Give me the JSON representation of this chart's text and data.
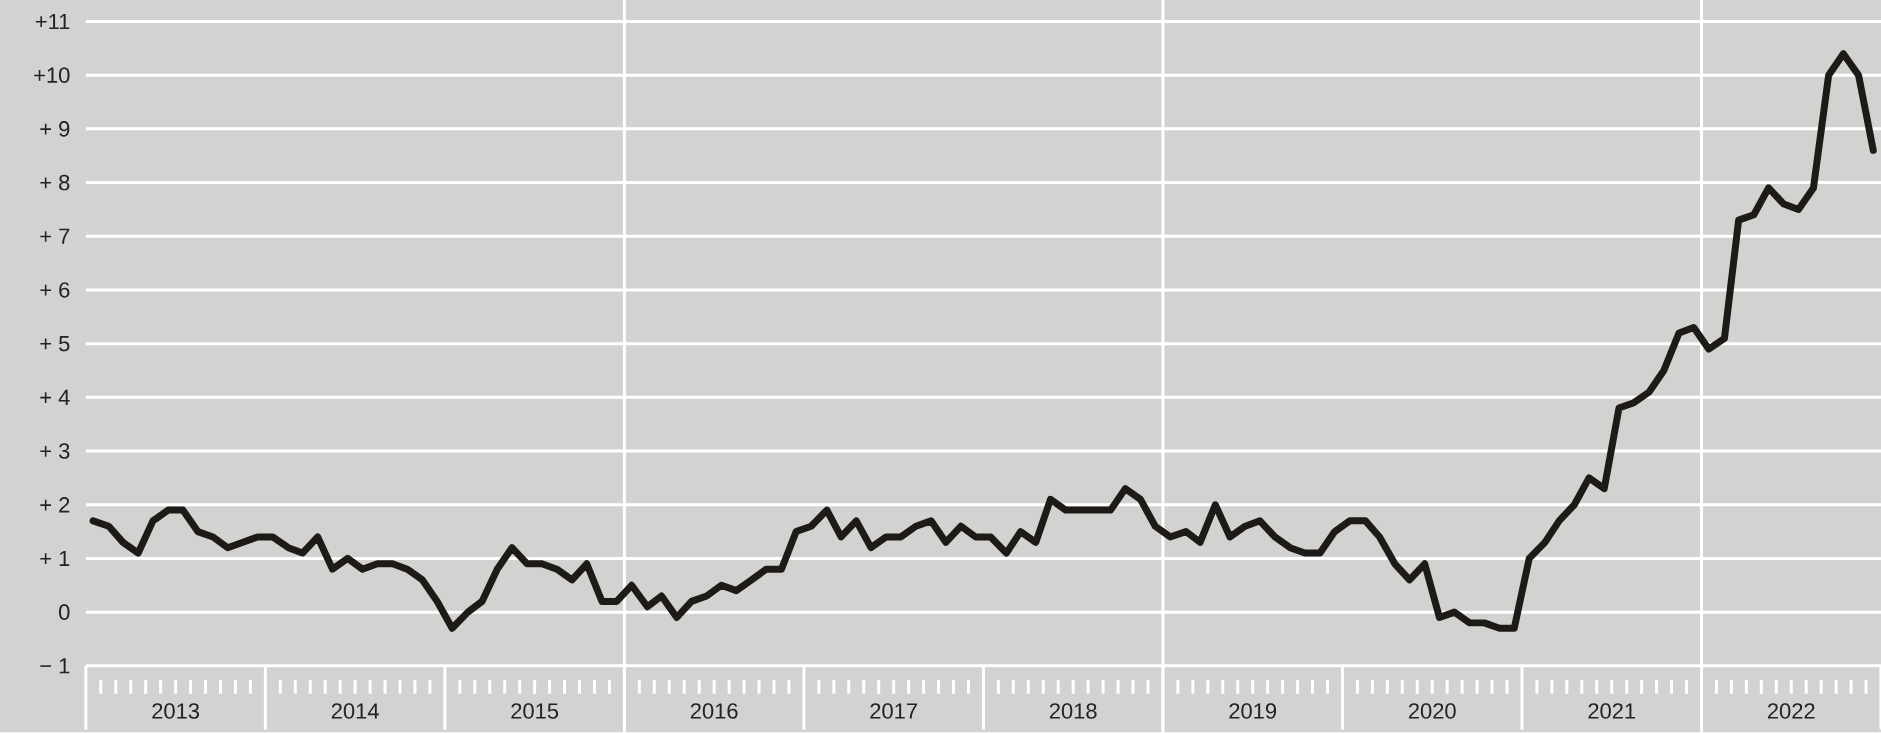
{
  "chart_data": {
    "type": "line",
    "x": [
      "2013-01-16",
      "2013-02-16",
      "2013-03-16",
      "2013-04-16",
      "2013-05-16",
      "2013-06-16",
      "2013-07-16",
      "2013-08-16",
      "2013-09-16",
      "2013-10-16",
      "2013-11-16",
      "2013-12-16",
      "2014-01-16",
      "2014-02-16",
      "2014-03-16",
      "2014-04-16",
      "2014-05-16",
      "2014-06-16",
      "2014-07-16",
      "2014-08-16",
      "2014-09-16",
      "2014-10-16",
      "2014-11-16",
      "2014-12-16",
      "2015-01-16",
      "2015-02-16",
      "2015-03-16",
      "2015-04-16",
      "2015-05-16",
      "2015-06-16",
      "2015-07-16",
      "2015-08-16",
      "2015-09-16",
      "2015-10-16",
      "2015-11-16",
      "2015-12-16",
      "2016-01-16",
      "2016-02-16",
      "2016-03-16",
      "2016-04-16",
      "2016-05-16",
      "2016-06-16",
      "2016-07-16",
      "2016-08-16",
      "2016-09-16",
      "2016-10-16",
      "2016-11-16",
      "2016-12-16",
      "2017-01-16",
      "2017-02-16",
      "2017-03-16",
      "2017-04-16",
      "2017-05-16",
      "2017-06-16",
      "2017-07-16",
      "2017-08-16",
      "2017-09-16",
      "2017-10-16",
      "2017-11-16",
      "2017-12-16",
      "2018-01-16",
      "2018-02-16",
      "2018-03-16",
      "2018-04-16",
      "2018-05-16",
      "2018-06-16",
      "2018-07-16",
      "2018-08-16",
      "2018-09-16",
      "2018-10-16",
      "2018-11-16",
      "2018-12-16",
      "2019-01-16",
      "2019-02-16",
      "2019-03-16",
      "2019-04-16",
      "2019-05-16",
      "2019-06-16",
      "2019-07-16",
      "2019-08-16",
      "2019-09-16",
      "2019-10-16",
      "2019-11-16",
      "2019-12-16",
      "2020-01-16",
      "2020-02-16",
      "2020-03-16",
      "2020-04-16",
      "2020-05-16",
      "2020-06-16",
      "2020-07-16",
      "2020-08-16",
      "2020-09-16",
      "2020-10-16",
      "2020-11-16",
      "2020-12-16",
      "2021-01-16",
      "2021-02-16",
      "2021-03-16",
      "2021-04-16",
      "2021-05-16",
      "2021-06-16",
      "2021-07-16",
      "2021-08-16",
      "2021-09-16",
      "2021-10-16",
      "2021-11-16",
      "2021-12-16",
      "2022-01-16",
      "2022-02-16",
      "2022-03-16",
      "2022-04-16",
      "2022-05-16",
      "2022-06-16",
      "2022-07-16",
      "2022-08-16",
      "2022-09-16",
      "2022-10-16",
      "2022-11-16",
      "2022-12-16"
    ],
    "series": [
      {
        "color": "#1e1a17",
        "values": [
          1.7,
          1.6,
          1.3,
          1.1,
          1.7,
          1.9,
          1.9,
          1.5,
          1.4,
          1.2,
          1.3,
          1.4,
          1.4,
          1.2,
          1.1,
          1.4,
          0.8,
          1.0,
          0.8,
          0.9,
          0.9,
          0.8,
          0.6,
          0.2,
          -0.3,
          0.0,
          0.2,
          0.8,
          1.2,
          0.9,
          0.9,
          0.8,
          0.6,
          0.9,
          0.2,
          0.2,
          0.5,
          0.1,
          0.3,
          -0.1,
          0.2,
          0.3,
          0.5,
          0.4,
          0.6,
          0.8,
          0.8,
          1.5,
          1.6,
          1.9,
          1.4,
          1.7,
          1.2,
          1.4,
          1.4,
          1.6,
          1.7,
          1.3,
          1.6,
          1.4,
          1.4,
          1.1,
          1.5,
          1.3,
          2.1,
          1.9,
          1.9,
          1.9,
          1.9,
          2.3,
          2.1,
          1.6,
          1.4,
          1.5,
          1.3,
          2.0,
          1.4,
          1.6,
          1.7,
          1.4,
          1.2,
          1.1,
          1.1,
          1.5,
          1.7,
          1.7,
          1.4,
          0.9,
          0.6,
          0.9,
          -0.1,
          0.0,
          -0.2,
          -0.2,
          -0.3,
          -0.3,
          1.0,
          1.3,
          1.7,
          2.0,
          2.5,
          2.3,
          3.8,
          3.9,
          4.1,
          4.5,
          5.2,
          5.3,
          4.9,
          5.1,
          7.3,
          7.4,
          7.9,
          7.6,
          7.5,
          7.9,
          10.0,
          10.4,
          10.0,
          8.6
        ]
      }
    ],
    "xlim": [
      "2013-01",
      "2023-01"
    ],
    "xticks": [
      {
        "value": "2013-07",
        "label": "2013"
      },
      {
        "value": "2014-07",
        "label": "2014"
      },
      {
        "value": "2015-07",
        "label": "2015"
      },
      {
        "value": "2016-07",
        "label": "2016"
      },
      {
        "value": "2017-07",
        "label": "2017"
      },
      {
        "value": "2018-07",
        "label": "2018"
      },
      {
        "value": "2019-07",
        "label": "2019"
      },
      {
        "value": "2020-07",
        "label": "2020"
      },
      {
        "value": "2021-07",
        "label": "2021"
      },
      {
        "value": "2022-07",
        "label": "2022"
      }
    ],
    "ylim": [
      -1,
      11.4
    ],
    "yticks": [
      {
        "value": -1,
        "label": "− 1"
      },
      0,
      {
        "value": 1,
        "label": "+ 1"
      },
      {
        "value": 2,
        "label": "+ 2"
      },
      {
        "value": 3,
        "label": "+ 3"
      },
      {
        "value": 4,
        "label": "+ 4"
      },
      {
        "value": 5,
        "label": "+ 5"
      },
      {
        "value": 6,
        "label": "+ 6"
      },
      {
        "value": 7,
        "label": "+ 7"
      },
      {
        "value": 8,
        "label": "+ 8"
      },
      {
        "value": 9,
        "label": "+ 9"
      },
      {
        "value": 10,
        "label": "+10"
      },
      {
        "value": 11,
        "label": "+11"
      }
    ],
    "grid": "y",
    "ref_lines": [
      {
        "axis": "x",
        "value": "2016-01",
        "color": "#ffffff"
      },
      {
        "axis": "x",
        "value": "2019-01",
        "color": "#ffffff"
      },
      {
        "axis": "x",
        "value": "2022-01",
        "color": "#ffffff"
      }
    ],
    "marker": "none",
    "line_style": "solid"
  }
}
